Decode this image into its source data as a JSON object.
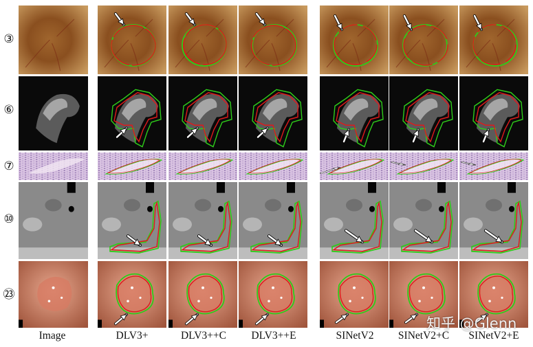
{
  "figure": {
    "row_labels": [
      "③",
      "⑥",
      "⑦",
      "⑩",
      "㉓"
    ],
    "column_labels": [
      "Image",
      "DLV3+",
      "DLV3++C",
      "DLV3++E",
      "SINetV2",
      "SINetV2+C",
      "SINetV2+E"
    ],
    "watermark": "知乎 @Glenn",
    "colors": {
      "ground_truth": "#2ecc1a",
      "prediction": "#e0191b",
      "arrow": "#ffffff"
    }
  }
}
